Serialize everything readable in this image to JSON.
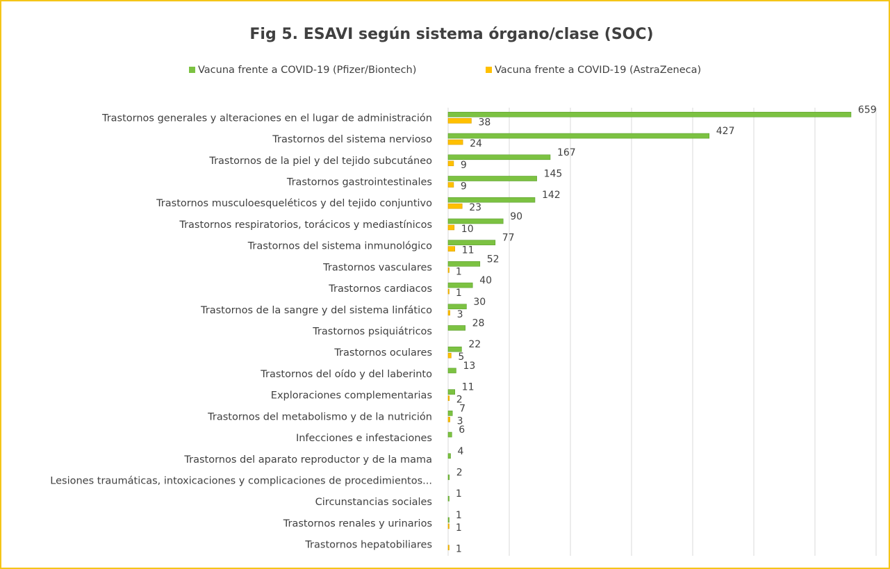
{
  "chart_data": {
    "type": "hbar",
    "title": "Fig 5. ESAVI según sistema órgano/clase (SOC)",
    "categories": [
      "Trastornos generales y alteraciones en el lugar de administración",
      "Trastornos del sistema nervioso",
      "Trastornos de la piel y del tejido subcutáneo",
      "Trastornos gastrointestinales",
      "Trastornos musculoesqueléticos y del tejido conjuntivo",
      "Trastornos respiratorios, torácicos y mediastínicos",
      "Trastornos del sistema inmunológico",
      "Trastornos vasculares",
      "Trastornos cardiacos",
      "Trastornos de la sangre y del sistema linfático",
      "Trastornos psiquiátricos",
      "Trastornos oculares",
      "Trastornos del oído y del laberinto",
      "Exploraciones complementarias",
      "Trastornos del metabolismo y de la nutrición",
      "Infecciones e infestaciones",
      "Trastornos del aparato reproductor y de la mama",
      "Lesiones traumáticas, intoxicaciones y complicaciones de procedimientos...",
      "Circunstancias sociales",
      "Trastornos renales y urinarios",
      "Trastornos hepatobiliares"
    ],
    "series": [
      {
        "name": "Vacuna frente a COVID-19 (Pfizer/Biontech)",
        "color": "#7cc242",
        "values": [
          659,
          427,
          167,
          145,
          142,
          90,
          77,
          52,
          40,
          30,
          28,
          22,
          13,
          11,
          7,
          6,
          4,
          2,
          1,
          1,
          null
        ]
      },
      {
        "name": "Vacuna frente a COVID-19 (AstraZeneca)",
        "color": "#ffc000",
        "values": [
          38,
          24,
          9,
          9,
          23,
          10,
          11,
          1,
          1,
          3,
          null,
          5,
          null,
          2,
          3,
          null,
          null,
          null,
          null,
          1,
          1
        ]
      }
    ],
    "xlim": [
      0,
      700
    ],
    "xticks": [
      0,
      100,
      200,
      300,
      400,
      500,
      600,
      700
    ],
    "grid": true,
    "legend": "top"
  }
}
